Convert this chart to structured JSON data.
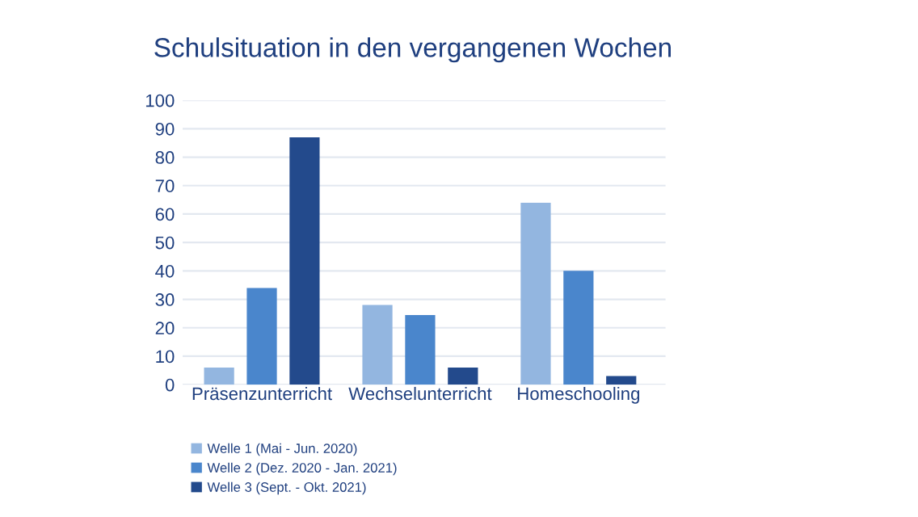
{
  "chart_data": {
    "type": "bar",
    "title": "Schulsituation in den vergangenen Wochen",
    "categories": [
      "Präsenzunterricht",
      "Wechselunterricht",
      "Homeschooling"
    ],
    "series": [
      {
        "name": "Welle 1 (Mai - Jun. 2020)",
        "color": "#93b6e0",
        "values": [
          6,
          28,
          64
        ]
      },
      {
        "name": "Welle 2 (Dez. 2020 - Jan. 2021)",
        "color": "#4a86cc",
        "values": [
          34,
          24.5,
          40
        ]
      },
      {
        "name": "Welle 3 (Sept. - Okt. 2021)",
        "color": "#234a8c",
        "values": [
          87,
          6,
          3
        ]
      }
    ],
    "ylim": [
      0,
      100
    ],
    "yticks": [
      0,
      10,
      20,
      30,
      40,
      50,
      60,
      70,
      80,
      90,
      100
    ],
    "grid": "y",
    "legend": "bottom left"
  }
}
